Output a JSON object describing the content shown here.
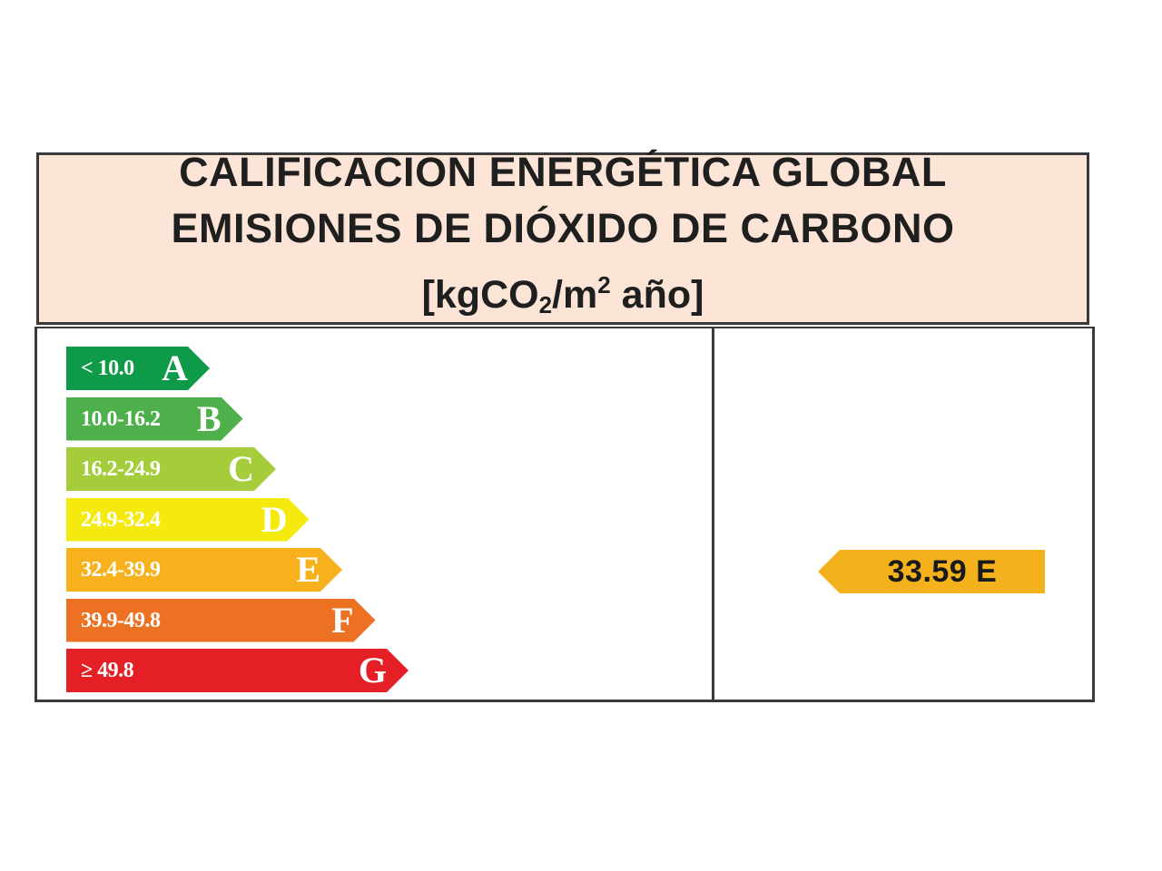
{
  "header": {
    "line1": "CALIFICACION ENERGÉTICA GLOBAL",
    "line2": "EMISIONES DE DIÓXIDO DE CARBONO",
    "unit_prefix": "[kgCO",
    "unit_sub": "2",
    "unit_mid": "/m",
    "unit_sup": "2",
    "unit_suffix": " año]"
  },
  "scale": [
    {
      "range": "< 10.0",
      "letter": "A",
      "color": "#0f9a4a"
    },
    {
      "range": "10.0-16.2",
      "letter": "B",
      "color": "#4db04a"
    },
    {
      "range": "16.2-24.9",
      "letter": "C",
      "color": "#a5cd3b"
    },
    {
      "range": "24.9-32.4",
      "letter": "D",
      "color": "#f4ea10"
    },
    {
      "range": "32.4-39.9",
      "letter": "E",
      "color": "#f7b11c"
    },
    {
      "range": "39.9-49.8",
      "letter": "F",
      "color": "#ec7123"
    },
    {
      "range": "≥ 49.8",
      "letter": "G",
      "color": "#e41f26"
    }
  ],
  "rating": {
    "value": "33.59",
    "letter": "E",
    "color": "#f3b21b"
  }
}
